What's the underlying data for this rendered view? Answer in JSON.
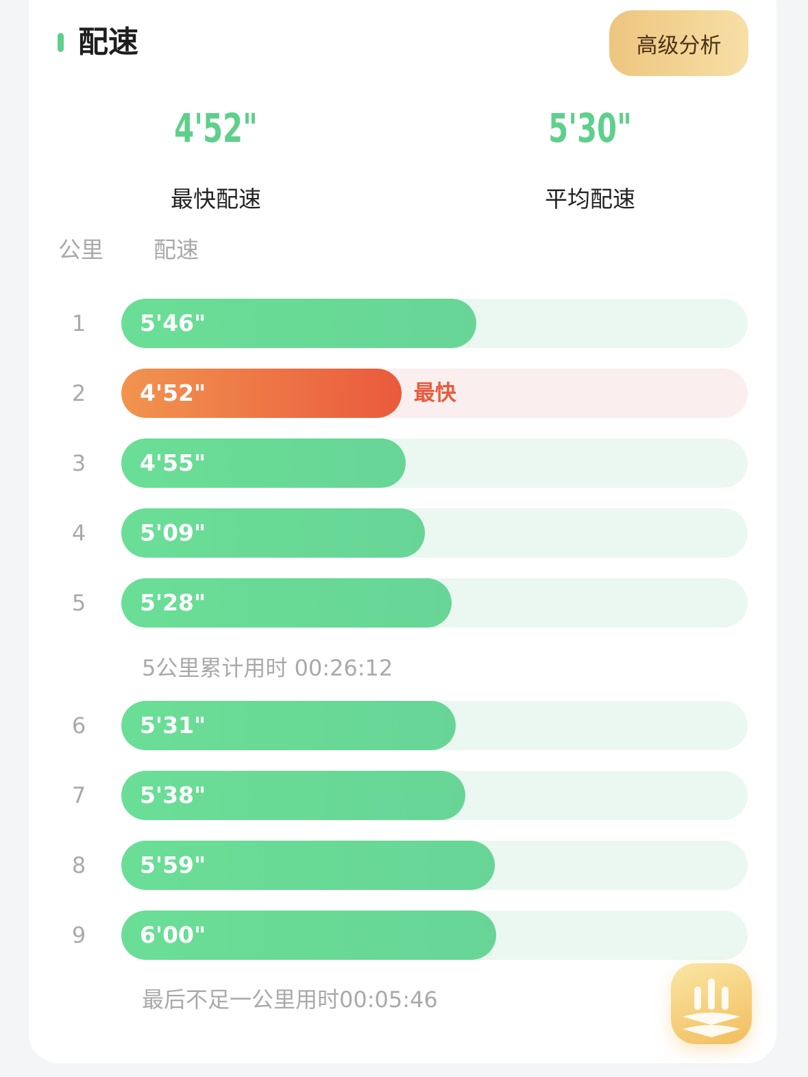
{
  "title": "配速",
  "advanced_button": "高级分析",
  "summary": {
    "fastest_value": "4'52\"",
    "fastest_label": "最快配速",
    "average_value": "5'30\"",
    "average_label": "平均配速"
  },
  "columns": {
    "km": "公里",
    "pace": "配速"
  },
  "fastest_tag": "最快",
  "splits": [
    {
      "km": "1",
      "pace": "5'46\"",
      "seconds": 346
    },
    {
      "km": "2",
      "pace": "4'52\"",
      "seconds": 292,
      "fastest": true
    },
    {
      "km": "3",
      "pace": "4'55\"",
      "seconds": 295
    },
    {
      "km": "4",
      "pace": "5'09\"",
      "seconds": 309
    },
    {
      "km": "5",
      "pace": "5'28\"",
      "seconds": 328
    },
    {
      "km": "6",
      "pace": "5'31\"",
      "seconds": 331
    },
    {
      "km": "7",
      "pace": "5'38\"",
      "seconds": 338
    },
    {
      "km": "8",
      "pace": "5'59\"",
      "seconds": 359
    },
    {
      "km": "9",
      "pace": "6'00\"",
      "seconds": 360
    }
  ],
  "cumulative_note": "5公里累计用时 00:26:12",
  "last_note": "最后不足一公里用时00:05:46",
  "colors": {
    "accent": "#5fcf8c",
    "fastest": "#ea5a3d",
    "gold": "#edc67f"
  },
  "fab_icon": "analysis-chart-icon"
}
